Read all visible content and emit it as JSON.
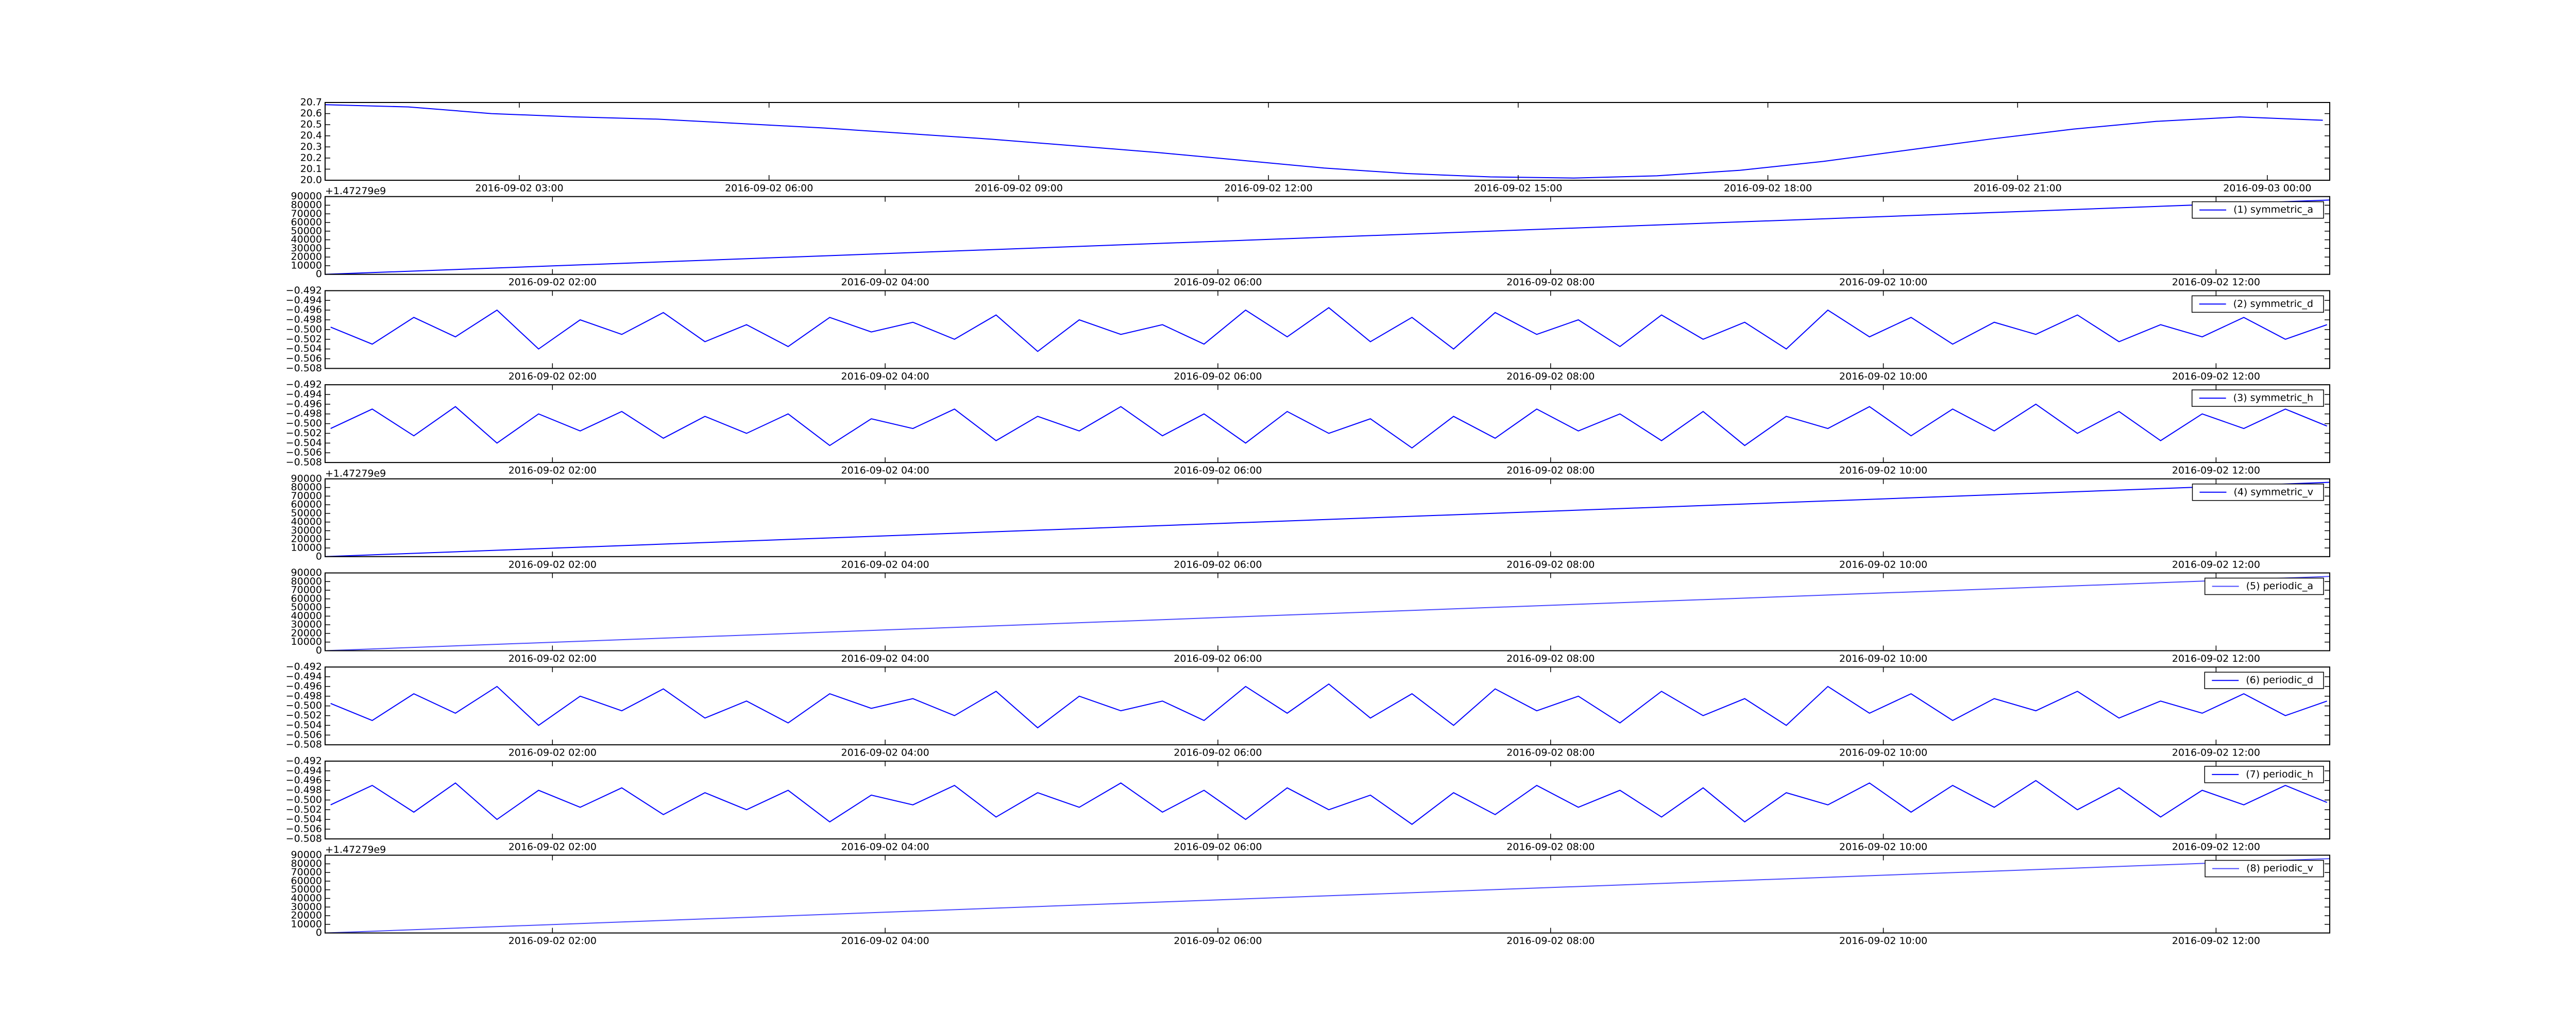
{
  "chart_data": [
    {
      "type": "line",
      "x": [
        "2016-09-02 00:40",
        "2016-09-02 01:40",
        "2016-09-02 02:40",
        "2016-09-02 03:40",
        "2016-09-02 04:40",
        "2016-09-02 05:40",
        "2016-09-02 06:40",
        "2016-09-02 07:40",
        "2016-09-02 08:40",
        "2016-09-02 09:40",
        "2016-09-02 10:40",
        "2016-09-02 11:40",
        "2016-09-02 12:40",
        "2016-09-02 13:40",
        "2016-09-02 14:40",
        "2016-09-02 15:40",
        "2016-09-02 16:40",
        "2016-09-02 17:40",
        "2016-09-02 18:40",
        "2016-09-02 19:40",
        "2016-09-02 20:40",
        "2016-09-02 21:40",
        "2016-09-02 22:40",
        "2016-09-02 23:40",
        "2016-09-03 00:40"
      ],
      "series": [
        {
          "color": "#0000ff",
          "values": [
            20.68,
            20.66,
            20.6,
            20.57,
            20.55,
            20.51,
            20.47,
            20.42,
            20.37,
            20.31,
            20.25,
            20.18,
            20.11,
            20.06,
            20.03,
            20.02,
            20.04,
            20.09,
            20.17,
            20.27,
            20.37,
            20.46,
            20.53,
            20.57,
            20.54
          ]
        }
      ],
      "xlim": [
        "2016-09-02 00:40",
        "2016-09-03 00:45"
      ],
      "xticks": [
        "2016-09-02 03:00",
        "2016-09-02 06:00",
        "2016-09-02 09:00",
        "2016-09-02 12:00",
        "2016-09-02 15:00",
        "2016-09-02 18:00",
        "2016-09-02 21:00",
        "2016-09-03 00:00"
      ],
      "ylim": [
        20.0,
        20.7
      ],
      "yticks": [
        {
          "value": 20.0,
          "label": "20.0"
        },
        20.1,
        20.2,
        20.3,
        20.4,
        20.5,
        20.6,
        20.7
      ]
    },
    {
      "type": "line",
      "x": [
        "2016-09-02 00:38",
        "2016-09-02 12:41"
      ],
      "series": [
        {
          "name": "(1) symmetric_a",
          "color": "#0000ff",
          "values": [
            0,
            86000
          ]
        }
      ],
      "xlim": [
        "2016-09-02 00:38",
        "2016-09-02 12:41"
      ],
      "xticks": [
        "2016-09-02 02:00",
        "2016-09-02 04:00",
        "2016-09-02 06:00",
        "2016-09-02 08:00",
        "2016-09-02 10:00",
        "2016-09-02 12:00"
      ],
      "ylim": [
        0,
        90000
      ],
      "yticks": [
        0,
        10000,
        20000,
        30000,
        40000,
        50000,
        60000,
        70000,
        80000,
        90000
      ],
      "offset_text": "+1.47279e9",
      "legend": "upper right"
    },
    {
      "type": "line",
      "x": [
        "2016-09-02 00:40",
        "2016-09-02 00:55",
        "2016-09-02 01:10",
        "2016-09-02 01:25",
        "2016-09-02 01:40",
        "2016-09-02 01:55",
        "2016-09-02 02:10",
        "2016-09-02 02:25",
        "2016-09-02 02:40",
        "2016-09-02 02:55",
        "2016-09-02 03:10",
        "2016-09-02 03:25",
        "2016-09-02 03:40",
        "2016-09-02 03:55",
        "2016-09-02 04:10",
        "2016-09-02 04:25",
        "2016-09-02 04:40",
        "2016-09-02 04:55",
        "2016-09-02 05:10",
        "2016-09-02 05:25",
        "2016-09-02 05:40",
        "2016-09-02 05:55",
        "2016-09-02 06:10",
        "2016-09-02 06:25",
        "2016-09-02 06:40",
        "2016-09-02 06:55",
        "2016-09-02 07:10",
        "2016-09-02 07:25",
        "2016-09-02 07:40",
        "2016-09-02 07:55",
        "2016-09-02 08:10",
        "2016-09-02 08:25",
        "2016-09-02 08:40",
        "2016-09-02 08:55",
        "2016-09-02 09:10",
        "2016-09-02 09:25",
        "2016-09-02 09:40",
        "2016-09-02 09:55",
        "2016-09-02 10:10",
        "2016-09-02 10:25",
        "2016-09-02 10:40",
        "2016-09-02 10:55",
        "2016-09-02 11:10",
        "2016-09-02 11:25",
        "2016-09-02 11:40",
        "2016-09-02 11:55",
        "2016-09-02 12:10",
        "2016-09-02 12:25",
        "2016-09-02 12:40"
      ],
      "series": [
        {
          "name": "(2) symmetric_d",
          "color": "#0000ff",
          "values": [
            -0.4995,
            -0.503,
            -0.4975,
            -0.5015,
            -0.496,
            -0.504,
            -0.498,
            -0.501,
            -0.4965,
            -0.5025,
            -0.499,
            -0.5035,
            -0.4975,
            -0.5005,
            -0.4985,
            -0.502,
            -0.497,
            -0.5045,
            -0.498,
            -0.501,
            -0.499,
            -0.503,
            -0.496,
            -0.5015,
            -0.4955,
            -0.5025,
            -0.4975,
            -0.504,
            -0.4965,
            -0.501,
            -0.498,
            -0.5035,
            -0.497,
            -0.502,
            -0.4985,
            -0.504,
            -0.496,
            -0.5015,
            -0.4975,
            -0.503,
            -0.4985,
            -0.501,
            -0.497,
            -0.5025,
            -0.499,
            -0.5015,
            -0.4975,
            -0.502,
            -0.499
          ]
        }
      ],
      "xlim": [
        "2016-09-02 00:38",
        "2016-09-02 12:41"
      ],
      "xticks": [
        "2016-09-02 02:00",
        "2016-09-02 04:00",
        "2016-09-02 06:00",
        "2016-09-02 08:00",
        "2016-09-02 10:00",
        "2016-09-02 12:00"
      ],
      "ylim": [
        -0.508,
        -0.492
      ],
      "yticks": [
        {
          "value": -0.508,
          "label": "−0.508"
        },
        {
          "value": -0.506,
          "label": "−0.506"
        },
        {
          "value": -0.504,
          "label": "−0.504"
        },
        {
          "value": -0.502,
          "label": "−0.502"
        },
        {
          "value": -0.5,
          "label": "−0.500"
        },
        {
          "value": -0.498,
          "label": "−0.498"
        },
        {
          "value": -0.496,
          "label": "−0.496"
        },
        {
          "value": -0.494,
          "label": "−0.494"
        },
        {
          "value": -0.492,
          "label": "−0.492"
        }
      ],
      "legend": "upper right"
    },
    {
      "type": "line",
      "x": [
        "2016-09-02 00:40",
        "2016-09-02 00:55",
        "2016-09-02 01:10",
        "2016-09-02 01:25",
        "2016-09-02 01:40",
        "2016-09-02 01:55",
        "2016-09-02 02:10",
        "2016-09-02 02:25",
        "2016-09-02 02:40",
        "2016-09-02 02:55",
        "2016-09-02 03:10",
        "2016-09-02 03:25",
        "2016-09-02 03:40",
        "2016-09-02 03:55",
        "2016-09-02 04:10",
        "2016-09-02 04:25",
        "2016-09-02 04:40",
        "2016-09-02 04:55",
        "2016-09-02 05:10",
        "2016-09-02 05:25",
        "2016-09-02 05:40",
        "2016-09-02 05:55",
        "2016-09-02 06:10",
        "2016-09-02 06:25",
        "2016-09-02 06:40",
        "2016-09-02 06:55",
        "2016-09-02 07:10",
        "2016-09-02 07:25",
        "2016-09-02 07:40",
        "2016-09-02 07:55",
        "2016-09-02 08:10",
        "2016-09-02 08:25",
        "2016-09-02 08:40",
        "2016-09-02 08:55",
        "2016-09-02 09:10",
        "2016-09-02 09:25",
        "2016-09-02 09:40",
        "2016-09-02 09:55",
        "2016-09-02 10:10",
        "2016-09-02 10:25",
        "2016-09-02 10:40",
        "2016-09-02 10:55",
        "2016-09-02 11:10",
        "2016-09-02 11:25",
        "2016-09-02 11:40",
        "2016-09-02 11:55",
        "2016-09-02 12:10",
        "2016-09-02 12:25",
        "2016-09-02 12:40"
      ],
      "series": [
        {
          "name": "(3) symmetric_h",
          "color": "#0000ff",
          "values": [
            -0.501,
            -0.497,
            -0.5025,
            -0.4965,
            -0.504,
            -0.498,
            -0.5015,
            -0.4975,
            -0.503,
            -0.4985,
            -0.502,
            -0.498,
            -0.5045,
            -0.499,
            -0.501,
            -0.497,
            -0.5035,
            -0.4985,
            -0.5015,
            -0.4965,
            -0.5025,
            -0.498,
            -0.504,
            -0.4975,
            -0.502,
            -0.499,
            -0.505,
            -0.4985,
            -0.503,
            -0.497,
            -0.5015,
            -0.498,
            -0.5035,
            -0.4975,
            -0.5045,
            -0.4985,
            -0.501,
            -0.4965,
            -0.5025,
            -0.497,
            -0.5015,
            -0.496,
            -0.502,
            -0.4975,
            -0.5035,
            -0.498,
            -0.501,
            -0.497,
            -0.5005
          ]
        }
      ],
      "xlim": [
        "2016-09-02 00:38",
        "2016-09-02 12:41"
      ],
      "xticks": [
        "2016-09-02 02:00",
        "2016-09-02 04:00",
        "2016-09-02 06:00",
        "2016-09-02 08:00",
        "2016-09-02 10:00",
        "2016-09-02 12:00"
      ],
      "ylim": [
        -0.508,
        -0.492
      ],
      "yticks": [
        {
          "value": -0.508,
          "label": "−0.508"
        },
        {
          "value": -0.506,
          "label": "−0.506"
        },
        {
          "value": -0.504,
          "label": "−0.504"
        },
        {
          "value": -0.502,
          "label": "−0.502"
        },
        {
          "value": -0.5,
          "label": "−0.500"
        },
        {
          "value": -0.498,
          "label": "−0.498"
        },
        {
          "value": -0.496,
          "label": "−0.496"
        },
        {
          "value": -0.494,
          "label": "−0.494"
        },
        {
          "value": -0.492,
          "label": "−0.492"
        }
      ],
      "legend": "upper right"
    },
    {
      "type": "line",
      "x": [
        "2016-09-02 00:38",
        "2016-09-02 12:41"
      ],
      "series": [
        {
          "name": "(4) symmetric_v",
          "color": "#0000ff",
          "values": [
            0,
            86000
          ]
        }
      ],
      "xlim": [
        "2016-09-02 00:38",
        "2016-09-02 12:41"
      ],
      "xticks": [
        "2016-09-02 02:00",
        "2016-09-02 04:00",
        "2016-09-02 06:00",
        "2016-09-02 08:00",
        "2016-09-02 10:00",
        "2016-09-02 12:00"
      ],
      "ylim": [
        0,
        90000
      ],
      "yticks": [
        0,
        10000,
        20000,
        30000,
        40000,
        50000,
        60000,
        70000,
        80000,
        90000
      ],
      "offset_text": "+1.47279e9",
      "legend": "upper right"
    },
    {
      "type": "line",
      "x": [
        "2016-09-02 00:38",
        "2016-09-02 12:41"
      ],
      "series": [
        {
          "name": "(5) periodic_a",
          "color": "#4a4aff",
          "values": [
            0,
            86000
          ]
        }
      ],
      "xlim": [
        "2016-09-02 00:38",
        "2016-09-02 12:41"
      ],
      "xticks": [
        "2016-09-02 02:00",
        "2016-09-02 04:00",
        "2016-09-02 06:00",
        "2016-09-02 08:00",
        "2016-09-02 10:00",
        "2016-09-02 12:00"
      ],
      "ylim": [
        0,
        90000
      ],
      "yticks": [
        0,
        10000,
        20000,
        30000,
        40000,
        50000,
        60000,
        70000,
        80000,
        90000
      ],
      "legend": "upper right"
    },
    {
      "type": "line",
      "x": [
        "2016-09-02 00:40",
        "2016-09-02 00:55",
        "2016-09-02 01:10",
        "2016-09-02 01:25",
        "2016-09-02 01:40",
        "2016-09-02 01:55",
        "2016-09-02 02:10",
        "2016-09-02 02:25",
        "2016-09-02 02:40",
        "2016-09-02 02:55",
        "2016-09-02 03:10",
        "2016-09-02 03:25",
        "2016-09-02 03:40",
        "2016-09-02 03:55",
        "2016-09-02 04:10",
        "2016-09-02 04:25",
        "2016-09-02 04:40",
        "2016-09-02 04:55",
        "2016-09-02 05:10",
        "2016-09-02 05:25",
        "2016-09-02 05:40",
        "2016-09-02 05:55",
        "2016-09-02 06:10",
        "2016-09-02 06:25",
        "2016-09-02 06:40",
        "2016-09-02 06:55",
        "2016-09-02 07:10",
        "2016-09-02 07:25",
        "2016-09-02 07:40",
        "2016-09-02 07:55",
        "2016-09-02 08:10",
        "2016-09-02 08:25",
        "2016-09-02 08:40",
        "2016-09-02 08:55",
        "2016-09-02 09:10",
        "2016-09-02 09:25",
        "2016-09-02 09:40",
        "2016-09-02 09:55",
        "2016-09-02 10:10",
        "2016-09-02 10:25",
        "2016-09-02 10:40",
        "2016-09-02 10:55",
        "2016-09-02 11:10",
        "2016-09-02 11:25",
        "2016-09-02 11:40",
        "2016-09-02 11:55",
        "2016-09-02 12:10",
        "2016-09-02 12:25",
        "2016-09-02 12:40"
      ],
      "series": [
        {
          "name": "(6) periodic_d",
          "color": "#0000ff",
          "values": [
            -0.4995,
            -0.503,
            -0.4975,
            -0.5015,
            -0.496,
            -0.504,
            -0.498,
            -0.501,
            -0.4965,
            -0.5025,
            -0.499,
            -0.5035,
            -0.4975,
            -0.5005,
            -0.4985,
            -0.502,
            -0.497,
            -0.5045,
            -0.498,
            -0.501,
            -0.499,
            -0.503,
            -0.496,
            -0.5015,
            -0.4955,
            -0.5025,
            -0.4975,
            -0.504,
            -0.4965,
            -0.501,
            -0.498,
            -0.5035,
            -0.497,
            -0.502,
            -0.4985,
            -0.504,
            -0.496,
            -0.5015,
            -0.4975,
            -0.503,
            -0.4985,
            -0.501,
            -0.497,
            -0.5025,
            -0.499,
            -0.5015,
            -0.4975,
            -0.502,
            -0.499
          ]
        }
      ],
      "xlim": [
        "2016-09-02 00:38",
        "2016-09-02 12:41"
      ],
      "xticks": [
        "2016-09-02 02:00",
        "2016-09-02 04:00",
        "2016-09-02 06:00",
        "2016-09-02 08:00",
        "2016-09-02 10:00",
        "2016-09-02 12:00"
      ],
      "ylim": [
        -0.508,
        -0.492
      ],
      "yticks": [
        {
          "value": -0.508,
          "label": "−0.508"
        },
        {
          "value": -0.506,
          "label": "−0.506"
        },
        {
          "value": -0.504,
          "label": "−0.504"
        },
        {
          "value": -0.502,
          "label": "−0.502"
        },
        {
          "value": -0.5,
          "label": "−0.500"
        },
        {
          "value": -0.498,
          "label": "−0.498"
        },
        {
          "value": -0.496,
          "label": "−0.496"
        },
        {
          "value": -0.494,
          "label": "−0.494"
        },
        {
          "value": -0.492,
          "label": "−0.492"
        }
      ],
      "legend": "upper right"
    },
    {
      "type": "line",
      "x": [
        "2016-09-02 00:40",
        "2016-09-02 00:55",
        "2016-09-02 01:10",
        "2016-09-02 01:25",
        "2016-09-02 01:40",
        "2016-09-02 01:55",
        "2016-09-02 02:10",
        "2016-09-02 02:25",
        "2016-09-02 02:40",
        "2016-09-02 02:55",
        "2016-09-02 03:10",
        "2016-09-02 03:25",
        "2016-09-02 03:40",
        "2016-09-02 03:55",
        "2016-09-02 04:10",
        "2016-09-02 04:25",
        "2016-09-02 04:40",
        "2016-09-02 04:55",
        "2016-09-02 05:10",
        "2016-09-02 05:25",
        "2016-09-02 05:40",
        "2016-09-02 05:55",
        "2016-09-02 06:10",
        "2016-09-02 06:25",
        "2016-09-02 06:40",
        "2016-09-02 06:55",
        "2016-09-02 07:10",
        "2016-09-02 07:25",
        "2016-09-02 07:40",
        "2016-09-02 07:55",
        "2016-09-02 08:10",
        "2016-09-02 08:25",
        "2016-09-02 08:40",
        "2016-09-02 08:55",
        "2016-09-02 09:10",
        "2016-09-02 09:25",
        "2016-09-02 09:40",
        "2016-09-02 09:55",
        "2016-09-02 10:10",
        "2016-09-02 10:25",
        "2016-09-02 10:40",
        "2016-09-02 10:55",
        "2016-09-02 11:10",
        "2016-09-02 11:25",
        "2016-09-02 11:40",
        "2016-09-02 11:55",
        "2016-09-02 12:10",
        "2016-09-02 12:25",
        "2016-09-02 12:40"
      ],
      "series": [
        {
          "name": "(7) periodic_h",
          "color": "#0000ff",
          "values": [
            -0.501,
            -0.497,
            -0.5025,
            -0.4965,
            -0.504,
            -0.498,
            -0.5015,
            -0.4975,
            -0.503,
            -0.4985,
            -0.502,
            -0.498,
            -0.5045,
            -0.499,
            -0.501,
            -0.497,
            -0.5035,
            -0.4985,
            -0.5015,
            -0.4965,
            -0.5025,
            -0.498,
            -0.504,
            -0.4975,
            -0.502,
            -0.499,
            -0.505,
            -0.4985,
            -0.503,
            -0.497,
            -0.5015,
            -0.498,
            -0.5035,
            -0.4975,
            -0.5045,
            -0.4985,
            -0.501,
            -0.4965,
            -0.5025,
            -0.497,
            -0.5015,
            -0.496,
            -0.502,
            -0.4975,
            -0.5035,
            -0.498,
            -0.501,
            -0.497,
            -0.5005
          ]
        }
      ],
      "xlim": [
        "2016-09-02 00:38",
        "2016-09-02 12:41"
      ],
      "xticks": [
        "2016-09-02 02:00",
        "2016-09-02 04:00",
        "2016-09-02 06:00",
        "2016-09-02 08:00",
        "2016-09-02 10:00",
        "2016-09-02 12:00"
      ],
      "ylim": [
        -0.508,
        -0.492
      ],
      "yticks": [
        {
          "value": -0.508,
          "label": "−0.508"
        },
        {
          "value": -0.506,
          "label": "−0.506"
        },
        {
          "value": -0.504,
          "label": "−0.504"
        },
        {
          "value": -0.502,
          "label": "−0.502"
        },
        {
          "value": -0.5,
          "label": "−0.500"
        },
        {
          "value": -0.498,
          "label": "−0.498"
        },
        {
          "value": -0.496,
          "label": "−0.496"
        },
        {
          "value": -0.494,
          "label": "−0.494"
        },
        {
          "value": -0.492,
          "label": "−0.492"
        }
      ],
      "legend": "upper right"
    },
    {
      "type": "line",
      "x": [
        "2016-09-02 00:38",
        "2016-09-02 12:41"
      ],
      "series": [
        {
          "name": "(8) periodic_v",
          "color": "#4a4aff",
          "values": [
            0,
            86000
          ]
        }
      ],
      "xlim": [
        "2016-09-02 00:38",
        "2016-09-02 12:41"
      ],
      "xticks": [
        "2016-09-02 02:00",
        "2016-09-02 04:00",
        "2016-09-02 06:00",
        "2016-09-02 08:00",
        "2016-09-02 10:00",
        "2016-09-02 12:00"
      ],
      "ylim": [
        0,
        90000
      ],
      "yticks": [
        0,
        10000,
        20000,
        30000,
        40000,
        50000,
        60000,
        70000,
        80000,
        90000
      ],
      "offset_text": "+1.47279e9",
      "legend": "upper right"
    }
  ]
}
